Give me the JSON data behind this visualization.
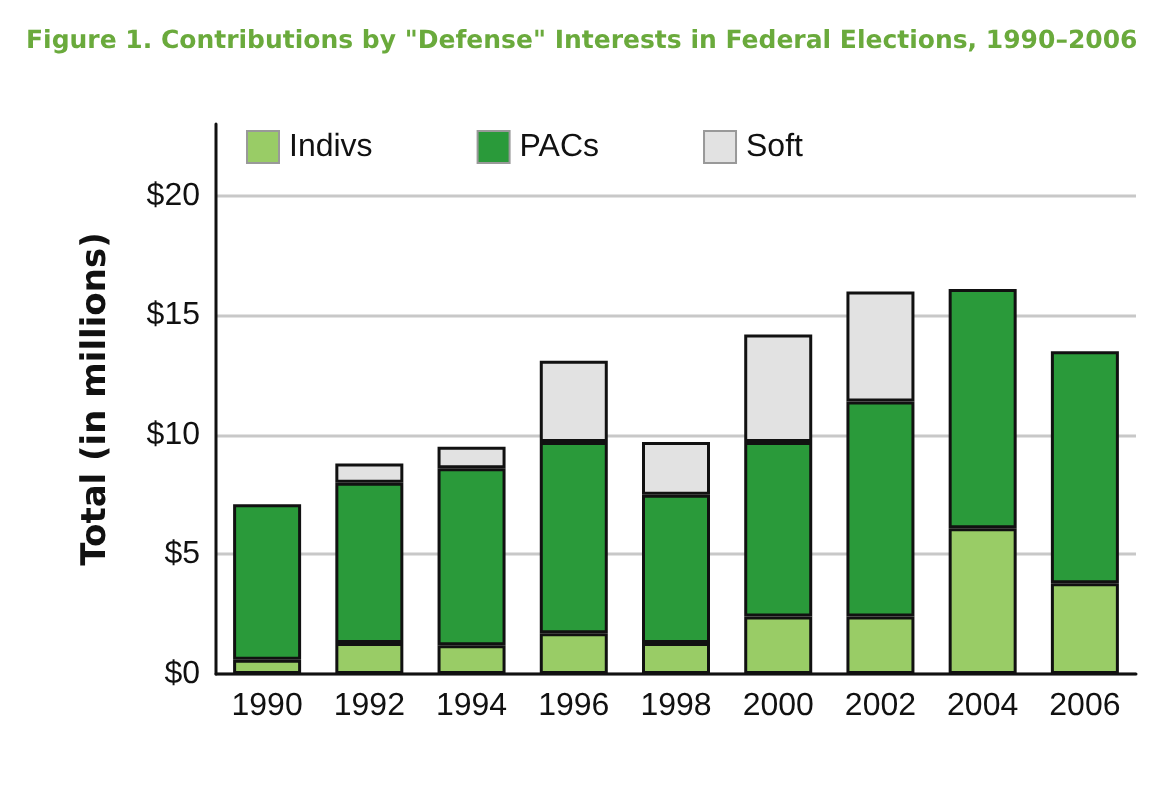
{
  "chart_data": {
    "type": "bar",
    "title": "Figure 1. Contributions by \"Defense\" Interests in Federal Elections, 1990–2006",
    "categories": [
      "1990",
      "1992",
      "1994",
      "1996",
      "1998",
      "2000",
      "2002",
      "2004",
      "2006"
    ],
    "series": [
      {
        "name": "Indivs",
        "color": "#99cc66",
        "values": [
          0.6,
          1.3,
          1.2,
          1.7,
          1.3,
          2.4,
          2.4,
          6.1,
          3.8
        ]
      },
      {
        "name": "PACs",
        "color": "#2a9a3a",
        "values": [
          6.5,
          6.7,
          7.4,
          8.0,
          6.2,
          7.3,
          9.0,
          10.0,
          9.7
        ]
      },
      {
        "name": "Soft",
        "color": "#e2e2e2",
        "values": [
          null,
          0.8,
          0.9,
          3.4,
          2.2,
          4.5,
          4.6,
          null,
          null
        ]
      }
    ],
    "stacked": true,
    "ylabel": "Total (in millions)",
    "ylim": [
      0,
      23
    ],
    "yticks": [
      {
        "value": 0,
        "label": "$0"
      },
      {
        "value": 5,
        "label": "$5"
      },
      {
        "value": 10,
        "label": "$10"
      },
      {
        "value": 15,
        "label": "$15"
      },
      {
        "value": 20,
        "label": "$20"
      }
    ],
    "grid": "y",
    "legend": "top"
  }
}
